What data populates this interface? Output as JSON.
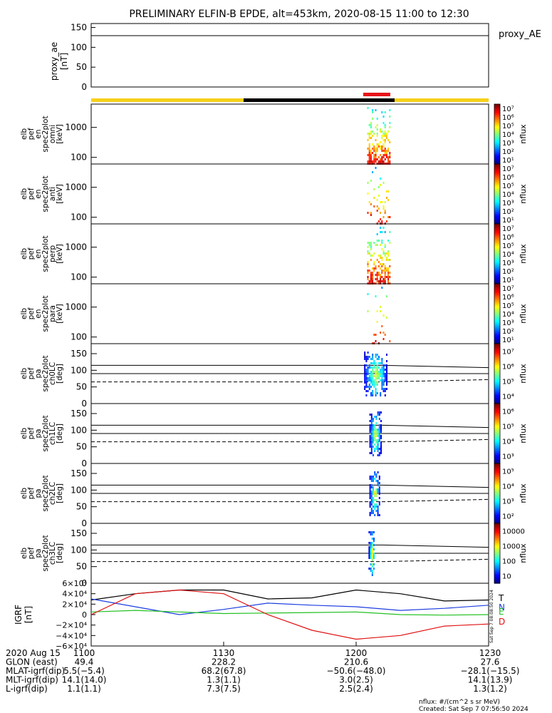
{
  "title": "PRELIMINARY ELFIN-B EPDE, alt=453km, 2020-08-15 11:00 to 12:30",
  "colors": {
    "day": "#f7d21a",
    "night": "#000000",
    "science_zone": "#e8141a",
    "trace": "#000000",
    "grf_T": "#000000",
    "grf_N": "#1c3ee0",
    "grf_E": "#22c022",
    "grf_D": "#e01010"
  },
  "proxy_ae": {
    "label": "proxy_AE",
    "ylabel": [
      "proxy_ae",
      "[nT]"
    ],
    "ticks": [
      "0",
      "50",
      "100",
      "150"
    ]
  },
  "spectra_panels": [
    {
      "ylabel": [
        "elb",
        "pef",
        "en",
        "spec2plot",
        "omni",
        "[keV]"
      ],
      "ticks": [
        "100",
        "1000"
      ],
      "cbar_ticks": [
        "10¹",
        "10²",
        "10³",
        "10⁴",
        "10⁵",
        "10⁶",
        "10⁷"
      ],
      "cbar_label": "nflux"
    },
    {
      "ylabel": [
        "elb",
        "pef",
        "en",
        "spec2plot",
        "anti",
        "[keV]"
      ],
      "ticks": [
        "100",
        "1000"
      ],
      "cbar_ticks": [
        "10¹",
        "10²",
        "10³",
        "10⁴",
        "10⁵",
        "10⁶",
        "10⁷"
      ],
      "cbar_label": "nflux"
    },
    {
      "ylabel": [
        "elb",
        "pef",
        "en",
        "spec2plot",
        "perp",
        "[keV]"
      ],
      "ticks": [
        "100",
        "1000"
      ],
      "cbar_ticks": [
        "10¹",
        "10²",
        "10³",
        "10⁴",
        "10⁵",
        "10⁶",
        "10⁷"
      ],
      "cbar_label": "nflux"
    },
    {
      "ylabel": [
        "elb",
        "pef",
        "en",
        "spec2plot",
        "para",
        "[keV]"
      ],
      "ticks": [
        "100",
        "1000"
      ],
      "cbar_ticks": [
        "10¹",
        "10²",
        "10³",
        "10⁴",
        "10⁵",
        "10⁶",
        "10⁷"
      ],
      "cbar_label": "nflux"
    }
  ],
  "pitch_panels": [
    {
      "ylabel": [
        "elb",
        "pef",
        "pa",
        "spec2plot",
        "ch0LC",
        "[deg]"
      ],
      "ticks": [
        "0",
        "50",
        "100",
        "150"
      ],
      "cbar_ticks": [
        "10⁴",
        "10⁵",
        "10⁶",
        "10⁷"
      ],
      "cbar_label": "nflux"
    },
    {
      "ylabel": [
        "elb",
        "pef",
        "pa",
        "spec2plot",
        "ch1LC",
        "[deg]"
      ],
      "ticks": [
        "0",
        "50",
        "100",
        "150"
      ],
      "cbar_ticks": [
        "10³",
        "10⁴",
        "10⁵",
        "10⁶"
      ],
      "cbar_label": "nflux"
    },
    {
      "ylabel": [
        "elb",
        "pef",
        "pa",
        "spec2plot",
        "ch2LC",
        "[deg]"
      ],
      "ticks": [
        "0",
        "50",
        "100",
        "150"
      ],
      "cbar_ticks": [
        "10²",
        "10³",
        "10⁴",
        "10⁵"
      ],
      "cbar_label": "nflux"
    },
    {
      "ylabel": [
        "elb",
        "pef",
        "pa",
        "spec2plot",
        "ch3LC",
        "[deg]"
      ],
      "ticks": [
        "0",
        "50",
        "100",
        "150"
      ],
      "cbar_ticks": [
        "10",
        "100",
        "1000",
        "10000"
      ],
      "cbar_label": "nflux"
    }
  ],
  "grf": {
    "ylabel": [
      "IGRF",
      "[nT]"
    ],
    "ticks": [
      "6×10⁴",
      "4×10⁴",
      "2×10⁴",
      "0",
      "−2×10⁴",
      "−4×10⁴",
      "−6×10⁴"
    ],
    "legend": [
      "T",
      "N",
      "E",
      "D"
    ],
    "side_stamp": "Sat Sep  7 08:08:50 2024"
  },
  "x_axis": {
    "rows": [
      {
        "label": "2020 Aug 15",
        "values": [
          "1100",
          "1130",
          "1200",
          "1230"
        ]
      },
      {
        "label": "GLON (east)",
        "values": [
          "49.4",
          "228.2",
          "210.6",
          "27.6"
        ]
      },
      {
        "label": "MLAT-igrf(dip)",
        "values": [
          "5.5(−5.4)",
          "68.2(67.8)",
          "−50.6(−48.0)",
          "−28.1(−15.5)"
        ]
      },
      {
        "label": "MLT-igrf(dip)",
        "values": [
          "14.1(14.0)",
          "1.3(1.1)",
          "3.0(2.5)",
          "14.1(13.9)"
        ]
      },
      {
        "label": "L-igrf(dip)",
        "values": [
          "1.1(1.1)",
          "7.3(7.5)",
          "2.5(2.4)",
          "1.3(1.2)"
        ]
      }
    ]
  },
  "footer": {
    "units": "nflux: #/(cm^2 s sr MeV)",
    "created": "Created: Sat Sep  7 07:56:50 2024"
  },
  "chart_data": [
    {
      "type": "line",
      "panel": "proxy_ae",
      "x": [
        "11:00",
        "11:30",
        "12:00",
        "12:30"
      ],
      "series": [
        {
          "values": [
            125,
            125,
            126,
            126
          ]
        }
      ],
      "ylim": [
        0,
        160
      ]
    },
    {
      "type": "heatmap",
      "panel": "energy spectrograms",
      "x_range": [
        "11:00",
        "12:30"
      ],
      "ylim": [
        60,
        6000
      ],
      "y_scale": "log",
      "activity_window": [
        "12:02",
        "12:08"
      ]
    },
    {
      "type": "heatmap",
      "panel": "pitch-angle spectrograms",
      "x_range": [
        "11:00",
        "12:30"
      ],
      "ylim": [
        0,
        180
      ],
      "activity_window": [
        "12:02",
        "12:07"
      ]
    },
    {
      "type": "line",
      "panel": "IGRF",
      "x": [
        "11:00",
        "11:10",
        "11:20",
        "11:30",
        "11:40",
        "11:50",
        "12:00",
        "12:10",
        "12:20",
        "12:30"
      ],
      "series": [
        {
          "name": "T",
          "values": [
            28000,
            40000,
            47000,
            47000,
            30000,
            32000,
            47000,
            40000,
            26000,
            28000
          ]
        },
        {
          "name": "N",
          "values": [
            30000,
            15000,
            0,
            10000,
            22000,
            18000,
            15000,
            8000,
            12000,
            18000
          ]
        },
        {
          "name": "E",
          "values": [
            5000,
            8000,
            5000,
            2000,
            3000,
            4000,
            5000,
            0,
            -1000,
            0
          ]
        },
        {
          "name": "D",
          "values": [
            0,
            40000,
            47000,
            40000,
            0,
            -30000,
            -47000,
            -40000,
            -22000,
            -18000
          ]
        }
      ],
      "ylim": [
        -60000,
        60000
      ]
    }
  ]
}
